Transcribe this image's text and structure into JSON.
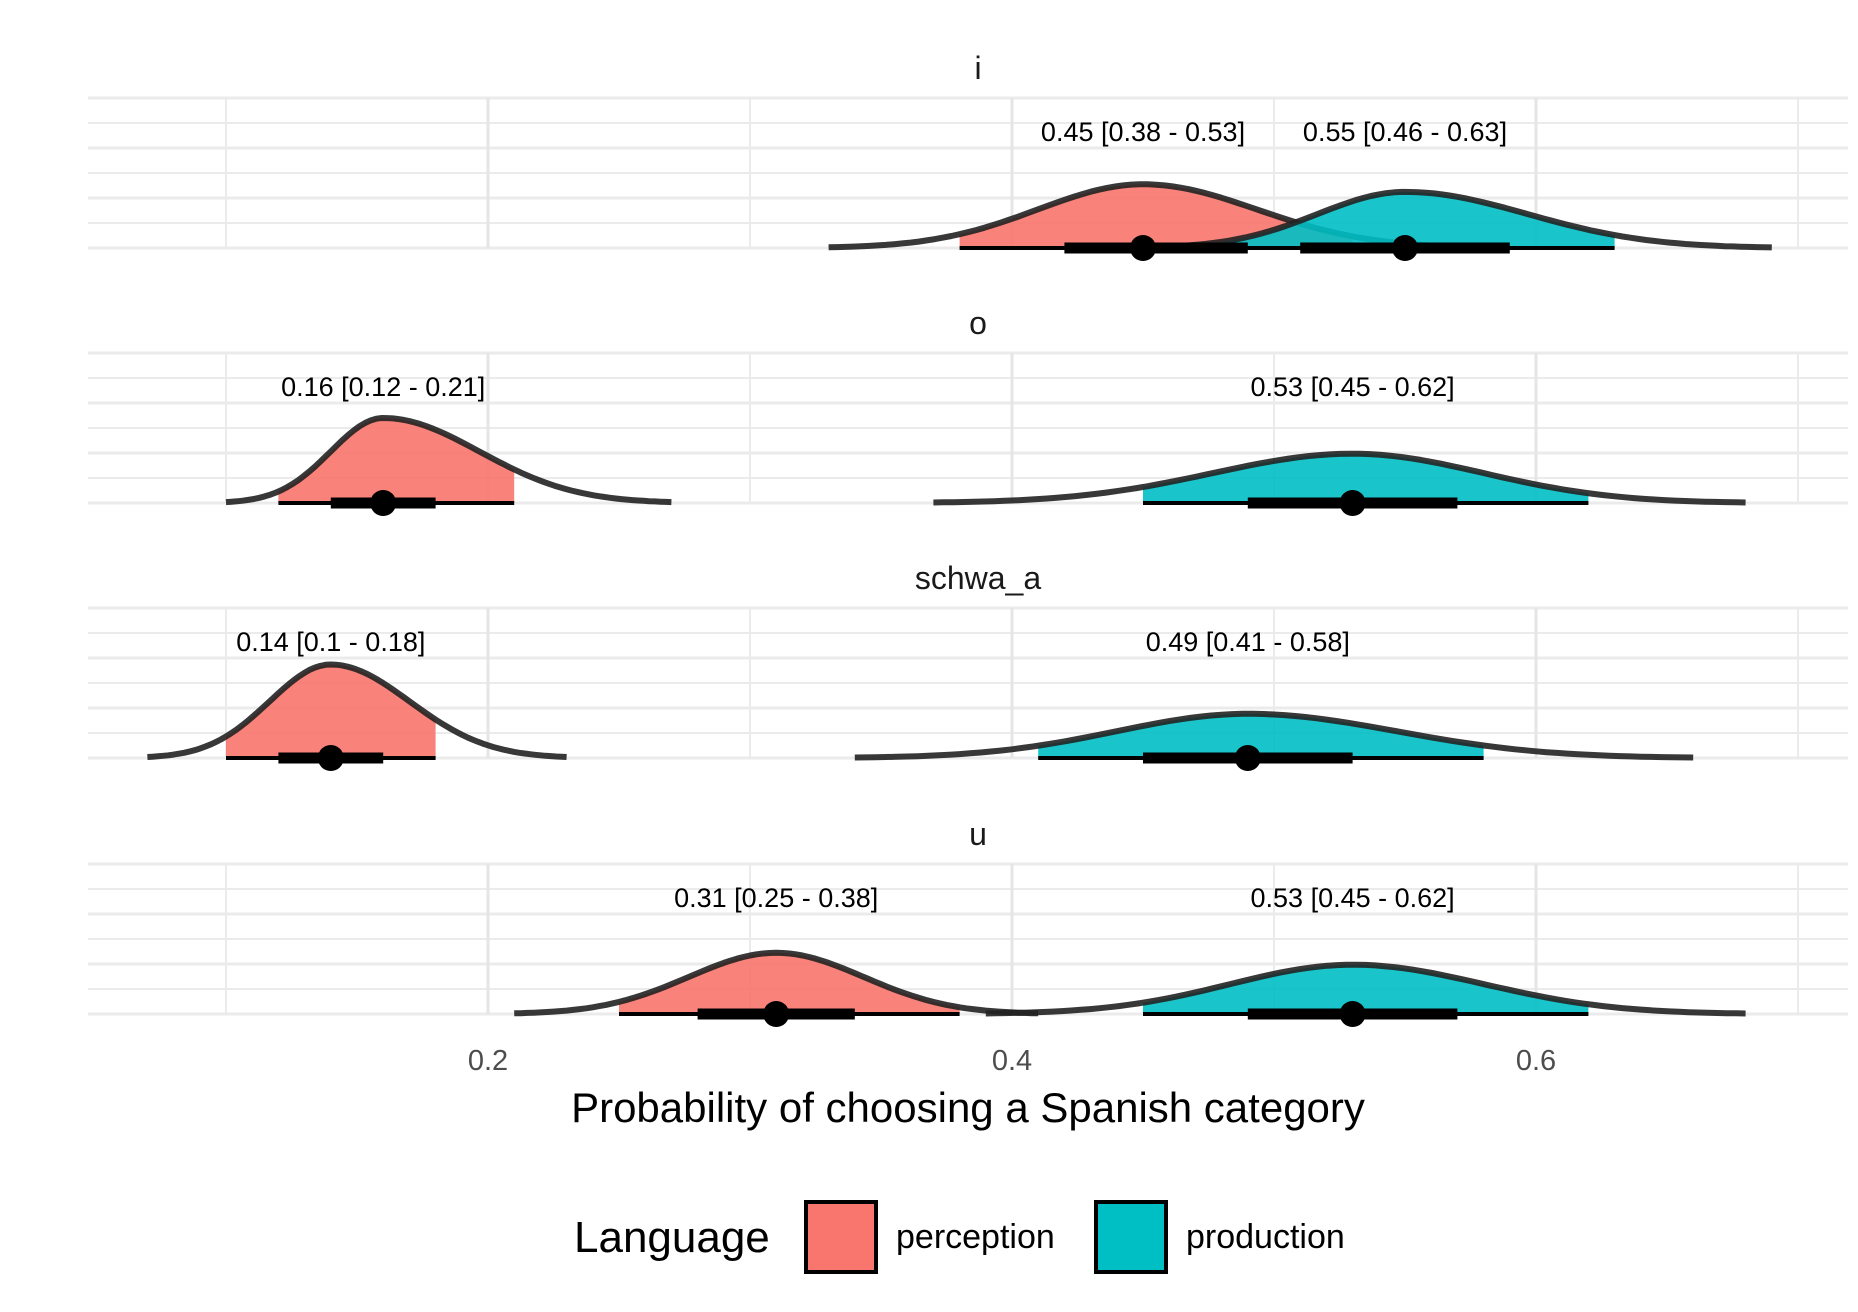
{
  "chart_data": {
    "type": "area",
    "subtype": "halfeye-density-with-interval",
    "title": "",
    "xlabel": "Probability of choosing a Spanish category",
    "ylabel": "",
    "xlim": [
      0.045,
      0.71
    ],
    "x_ticks": [
      0.2,
      0.4,
      0.6
    ],
    "x_tick_labels": [
      "0.2",
      "0.4",
      "0.6"
    ],
    "grid": true,
    "legend": {
      "title": "Language",
      "position": "bottom",
      "entries": [
        {
          "label": "perception",
          "color": "#F8766D"
        },
        {
          "label": "production",
          "color": "#00BFC4"
        }
      ]
    },
    "facets": [
      {
        "name": "i",
        "series": [
          {
            "language": "perception",
            "median": 0.45,
            "lower": 0.38,
            "upper": 0.53,
            "inner": [
              0.42,
              0.49
            ],
            "density_range": [
              0.33,
              0.58
            ],
            "peak_height": 0.75,
            "label": "0.45 [0.38 - 0.53]"
          },
          {
            "language": "production",
            "median": 0.55,
            "lower": 0.46,
            "upper": 0.63,
            "inner": [
              0.51,
              0.59
            ],
            "density_range": [
              0.45,
              0.69
            ],
            "peak_height": 0.66,
            "label": "0.55 [0.46 - 0.63]"
          }
        ]
      },
      {
        "name": "o",
        "series": [
          {
            "language": "perception",
            "median": 0.16,
            "lower": 0.12,
            "upper": 0.21,
            "inner": [
              0.14,
              0.18
            ],
            "density_range": [
              0.1,
              0.27
            ],
            "peak_height": 1.0,
            "label": "0.16 [0.12 - 0.21]"
          },
          {
            "language": "production",
            "median": 0.53,
            "lower": 0.45,
            "upper": 0.62,
            "inner": [
              0.49,
              0.57
            ],
            "density_range": [
              0.37,
              0.68
            ],
            "peak_height": 0.58,
            "label": "0.53 [0.45 - 0.62]"
          }
        ]
      },
      {
        "name": "schwa_a",
        "series": [
          {
            "language": "perception",
            "median": 0.14,
            "lower": 0.1,
            "upper": 0.18,
            "inner": [
              0.12,
              0.16
            ],
            "density_range": [
              0.07,
              0.23
            ],
            "peak_height": 1.1,
            "label": "0.14 [0.1 - 0.18]"
          },
          {
            "language": "production",
            "median": 0.49,
            "lower": 0.41,
            "upper": 0.58,
            "inner": [
              0.45,
              0.53
            ],
            "density_range": [
              0.34,
              0.66
            ],
            "peak_height": 0.52,
            "label": "0.49 [0.41 - 0.58]"
          }
        ]
      },
      {
        "name": "u",
        "series": [
          {
            "language": "perception",
            "median": 0.31,
            "lower": 0.25,
            "upper": 0.38,
            "inner": [
              0.28,
              0.34
            ],
            "density_range": [
              0.21,
              0.41
            ],
            "peak_height": 0.72,
            "label": "0.31 [0.25 - 0.38]"
          },
          {
            "language": "production",
            "median": 0.53,
            "lower": 0.45,
            "upper": 0.62,
            "inner": [
              0.49,
              0.57
            ],
            "density_range": [
              0.39,
              0.68
            ],
            "peak_height": 0.58,
            "label": "0.53 [0.45 - 0.62]"
          }
        ]
      }
    ]
  }
}
